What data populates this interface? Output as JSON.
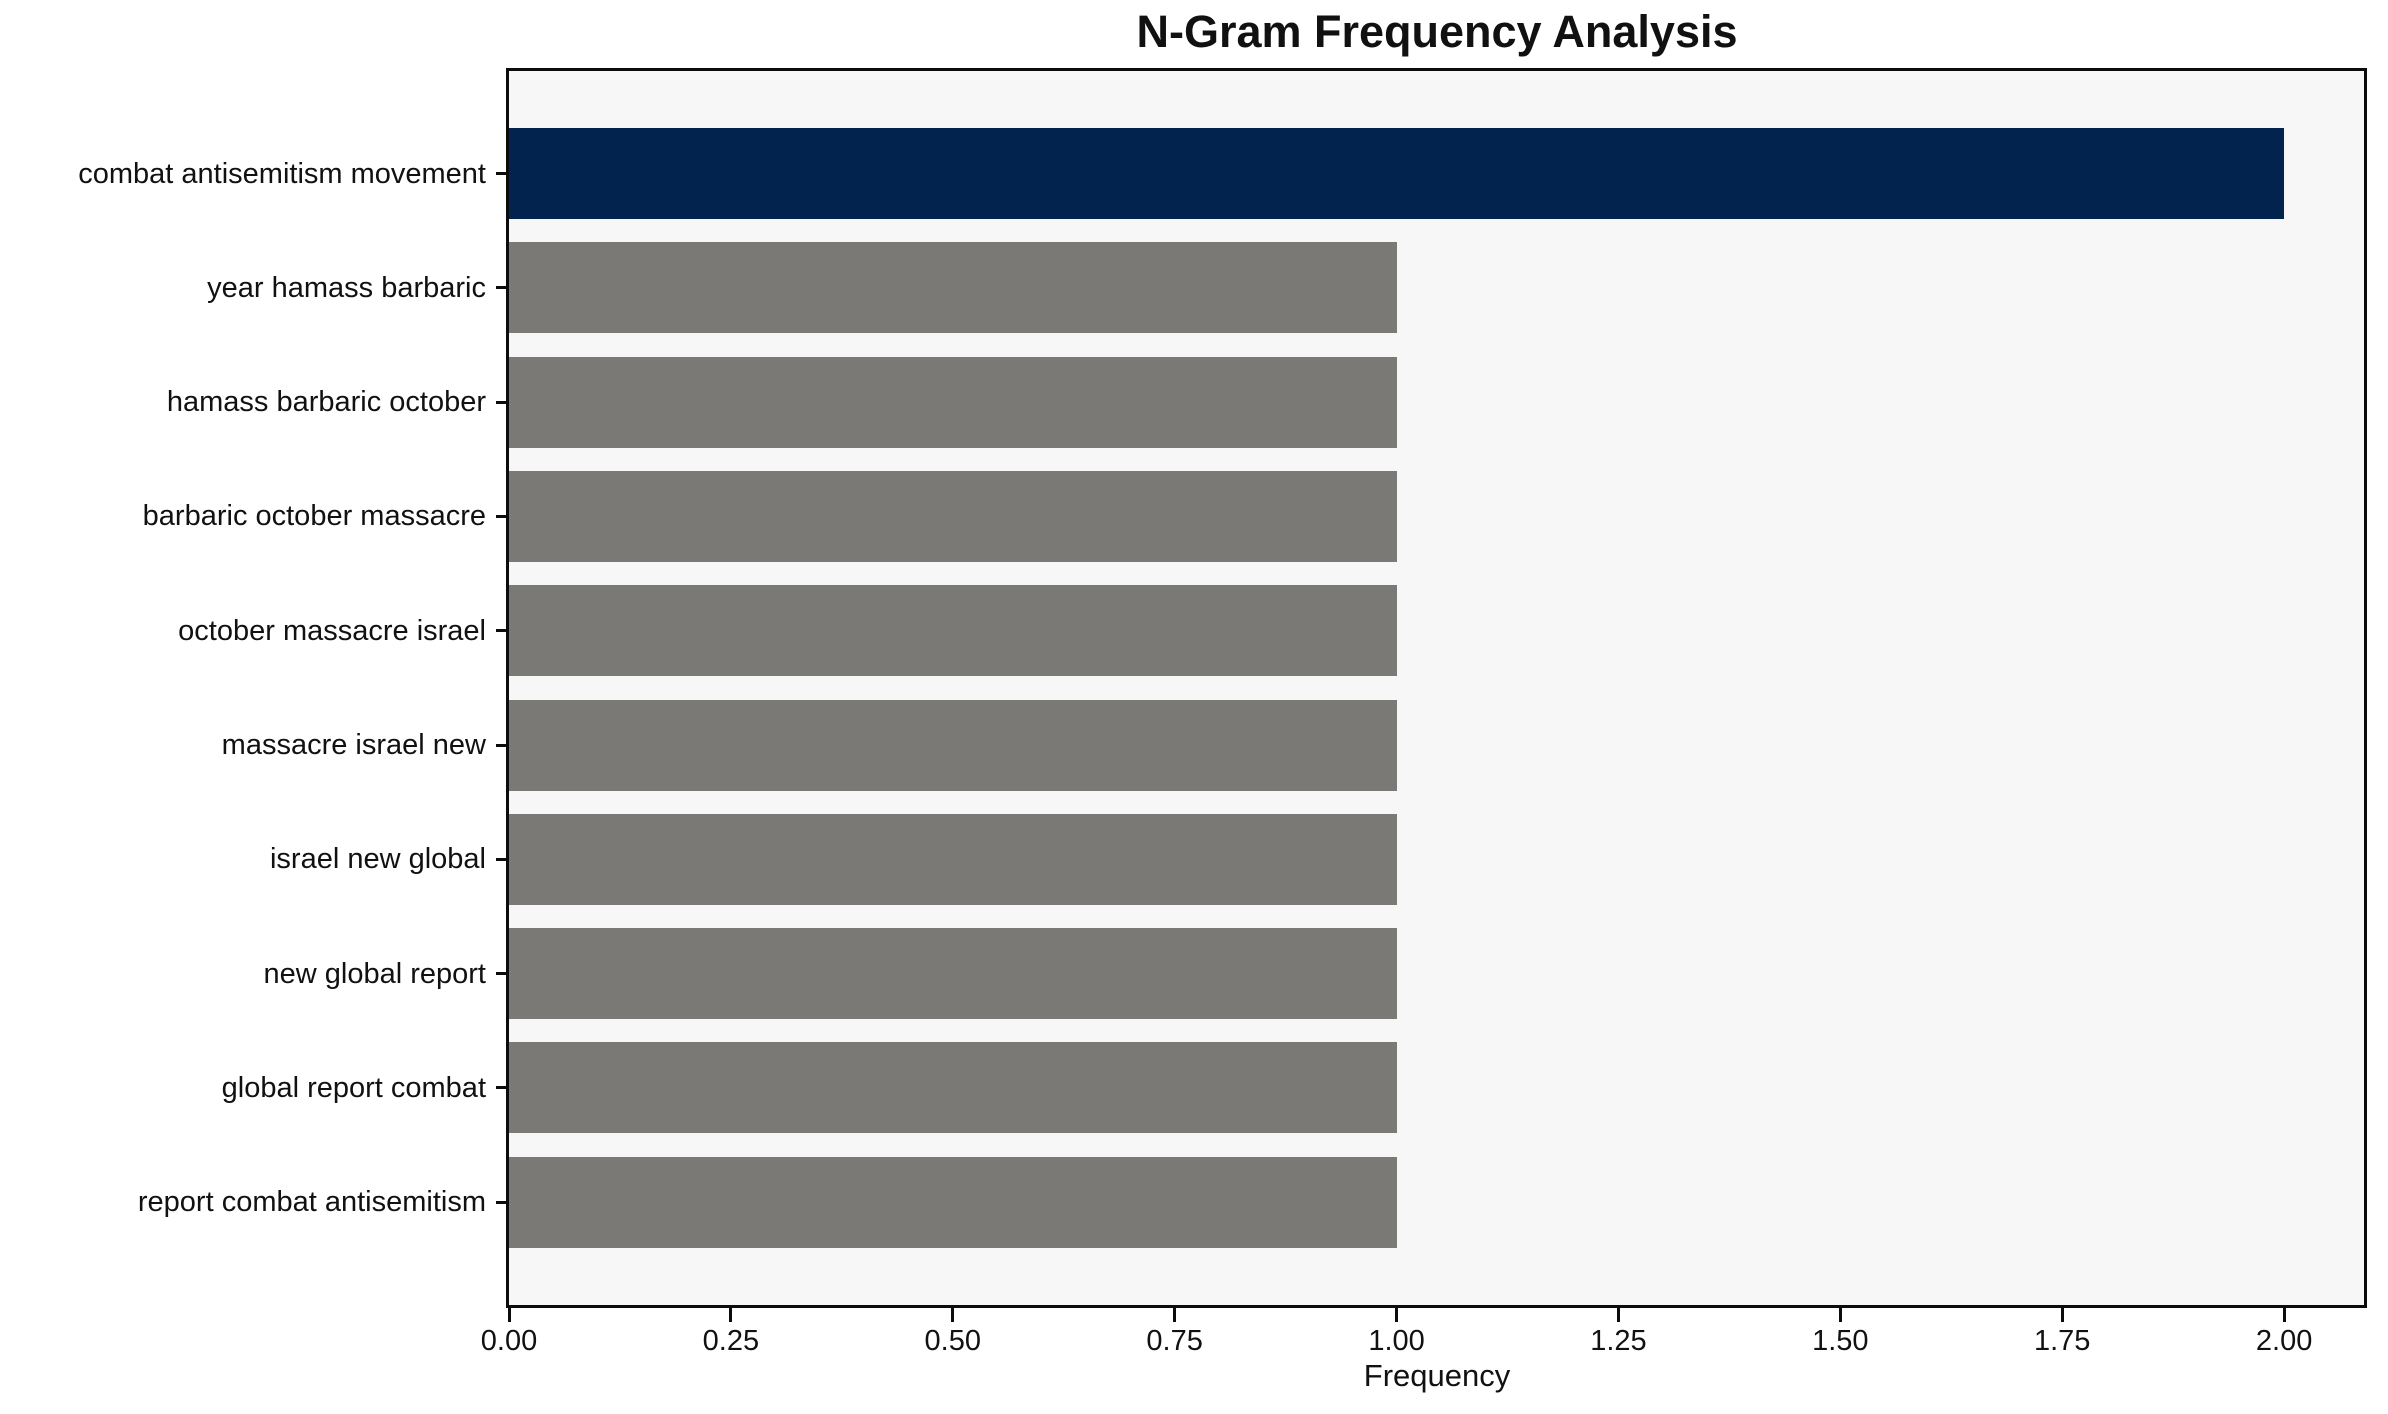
{
  "chart_data": {
    "type": "bar",
    "orientation": "horizontal",
    "title": "N-Gram Frequency Analysis",
    "xlabel": "Frequency",
    "ylabel": "",
    "categories": [
      "combat antisemitism movement",
      "year hamass barbaric",
      "hamass barbaric october",
      "barbaric october massacre",
      "october massacre israel",
      "massacre israel new",
      "israel new global",
      "new global report",
      "global report combat",
      "report combat antisemitism"
    ],
    "values": [
      2.0,
      1.0,
      1.0,
      1.0,
      1.0,
      1.0,
      1.0,
      1.0,
      1.0,
      1.0
    ],
    "bar_colors": [
      "#01234d",
      "#7b7975",
      "#7b7975",
      "#7b7975",
      "#7b7975",
      "#7b7975",
      "#7b7975",
      "#7b7975",
      "#7b7975",
      "#7b7975"
    ],
    "xlim": [
      0,
      2.09
    ],
    "xticks": [
      0.0,
      0.25,
      0.5,
      0.75,
      1.0,
      1.25,
      1.5,
      1.75,
      2.0
    ],
    "xtick_labels": [
      "0.00",
      "0.25",
      "0.50",
      "0.75",
      "1.00",
      "1.25",
      "1.50",
      "1.75",
      "2.00"
    ],
    "grid": false,
    "legend_position": "none",
    "colors": {
      "highlight_bar": "#01234d",
      "default_bar": "#7b7975",
      "plot_background": "#f7f7f7",
      "figure_background": "#ffffff",
      "frame": "#0c0c0c",
      "text": "#111111"
    }
  }
}
